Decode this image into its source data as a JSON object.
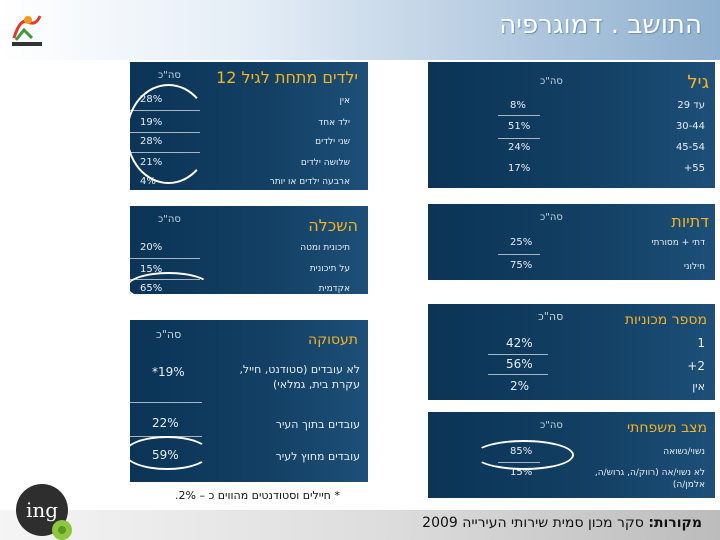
{
  "title": "התושב . דמוגרפיה",
  "source": {
    "label": "מקורות:",
    "text": "סקר מכון סמית שירותי העירייה 2009"
  },
  "total_header": "סה\"כ",
  "total_header_alt": "סה\"כ",
  "age": {
    "title": "גיל",
    "rows": [
      {
        "label": "עד 29",
        "value": "8%"
      },
      {
        "label": "30-44",
        "value": "51%"
      },
      {
        "label": "45-54",
        "value": "24%"
      },
      {
        "label": "55+",
        "value": "17%"
      }
    ]
  },
  "religiosity": {
    "title": "דתיות",
    "rows": [
      {
        "label": "דתי + מסורתי",
        "value": "25%"
      },
      {
        "label": "חילוני",
        "value": "75%"
      }
    ]
  },
  "cars": {
    "title": "מספר מכוניות",
    "rows": [
      {
        "label": "1",
        "value": "42%"
      },
      {
        "label": "2+",
        "value": "56%"
      },
      {
        "label": "אין",
        "value": "2%"
      }
    ]
  },
  "marital": {
    "title": "מצב משפחתי",
    "rows": [
      {
        "label": "נשוי/נשואה",
        "value": "85%"
      },
      {
        "label": "לא נשוי/אה (רווק/ה, גרוש/ה, אלמן/ה)",
        "value": "15%"
      }
    ]
  },
  "children": {
    "title": "ילדים מתחת לגיל 12",
    "rows": [
      {
        "label": "אין",
        "value": "28%"
      },
      {
        "label": "ילד אחד",
        "value": "19%"
      },
      {
        "label": "שני ילדים",
        "value": "28%"
      },
      {
        "label": "שלושה ילדים",
        "value": "21%"
      },
      {
        "label": "ארבעה ילדים או יותר",
        "value": "4%"
      }
    ]
  },
  "education": {
    "title": "השכלה",
    "rows": [
      {
        "label": "תיכונית ומטה",
        "value": "20%"
      },
      {
        "label": "על תיכונית",
        "value": "15%"
      },
      {
        "label": "אקדמית",
        "value": "65%"
      }
    ]
  },
  "employment": {
    "title": "תעסוקה",
    "rows": [
      {
        "label": "לא עובדים (סטודנט, חייל, עקרת בית, גמלאי)",
        "value": "*19%"
      },
      {
        "label": "עובדים בתוך העיר",
        "value": "22%"
      },
      {
        "label": "עובדים מחוץ לעיר",
        "value": "59%"
      }
    ]
  },
  "footnote": "* חיילים וסטודנטים מהווים כ – 2%.",
  "logo_text": "ing",
  "colors": {
    "panel": "#0b3456",
    "title": "#f5b323",
    "text": "#e8eef4",
    "header_gradient_end": "#8fb0cf"
  }
}
